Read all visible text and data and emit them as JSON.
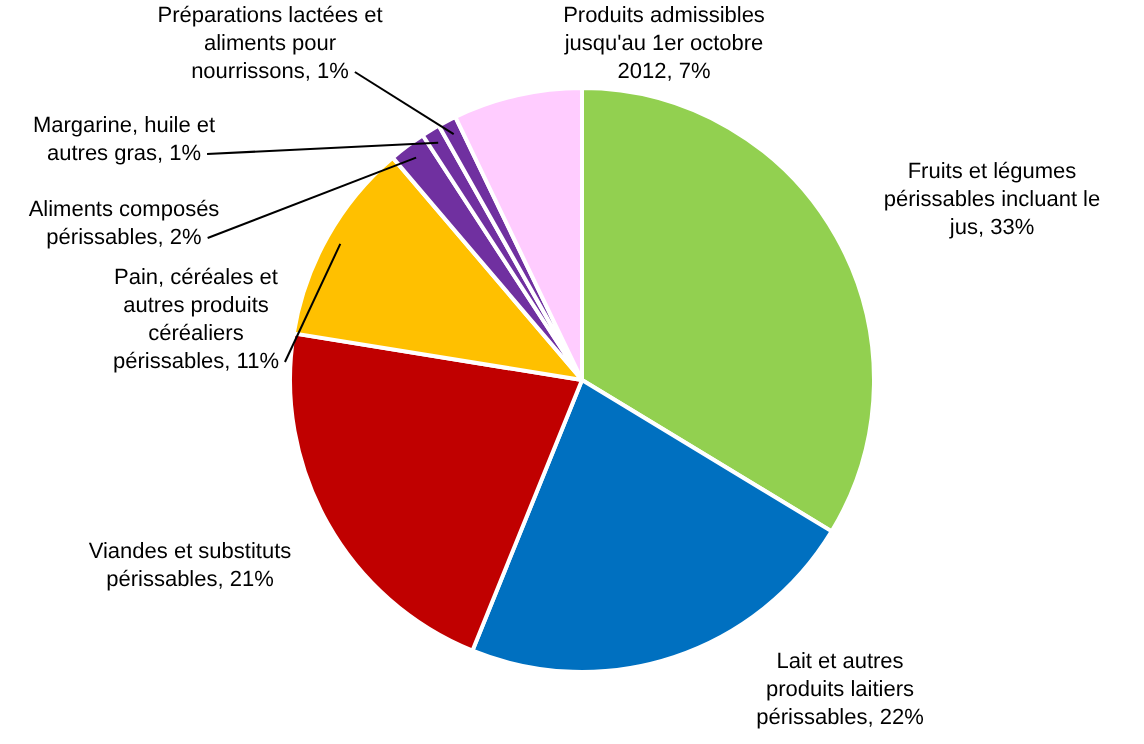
{
  "chart_data": {
    "type": "pie",
    "categories": [
      "Fruits et légumes périssables incluant le jus",
      "Lait et autres produits laitiers périssables",
      "Viandes et substituts périssables",
      "Pain, céréales et autres produits céréaliers périssables",
      "Aliments composés périssables",
      "Margarine, huile et autres gras",
      "Préparations lactées et aliments pour nourrissons",
      "Produits admissibles jusqu'au 1er octobre 2012"
    ],
    "values": [
      33,
      22,
      21,
      11,
      2,
      1,
      1,
      7
    ],
    "value_labels": [
      "33%",
      "22%",
      "21%",
      "11%",
      "2%",
      "1%",
      "1%",
      "7%"
    ],
    "colors": [
      "#92d050",
      "#0070c0",
      "#c00000",
      "#ffc000",
      "#7030a0",
      "#7030a0",
      "#7030a0",
      "#ffccff"
    ],
    "legend": false
  }
}
